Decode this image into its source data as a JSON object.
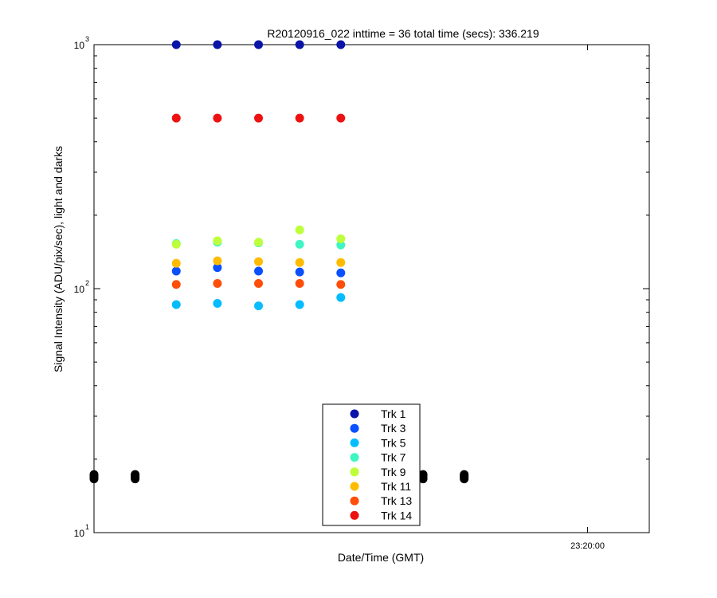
{
  "chart_data": {
    "type": "scatter",
    "title": "R20120916_022 inttime = 36 total time (secs): 336.219",
    "xlabel": "Date/Time (GMT)",
    "ylabel": "Signal Intensity (ADU/pix/sec), light and darks",
    "y_scale": "log",
    "ylim": [
      10,
      1000
    ],
    "y_ticks": [
      {
        "value": 10,
        "base": "10",
        "exp": "1"
      },
      {
        "value": 100,
        "base": "10",
        "exp": "2"
      },
      {
        "value": 1000,
        "base": "10",
        "exp": "3"
      }
    ],
    "x_ticks": [
      "23:20:00"
    ],
    "x_times": [
      "23:17:36",
      "23:17:48",
      "23:18:00",
      "23:18:12",
      "23:18:24",
      "23:18:36",
      "23:18:48",
      "23:19:00",
      "23:19:12"
    ],
    "xlim": [
      "23:17:36",
      "23:20:18"
    ],
    "grid": false,
    "legend_position": "bottom-center",
    "series": [
      {
        "name": "Trk 1",
        "color": "#0a14a8",
        "x": [
          "23:18:00",
          "23:18:12",
          "23:18:24",
          "23:18:36",
          "23:18:48"
        ],
        "values": [
          1000,
          1000,
          1000,
          1000,
          1000
        ]
      },
      {
        "name": "Trk 3",
        "color": "#0a50ff",
        "x": [
          "23:18:00",
          "23:18:12",
          "23:18:24",
          "23:18:36",
          "23:18:48"
        ],
        "values": [
          118,
          122,
          118,
          117,
          116
        ]
      },
      {
        "name": "Trk 5",
        "color": "#05bcff",
        "x": [
          "23:18:00",
          "23:18:12",
          "23:18:24",
          "23:18:36",
          "23:18:48"
        ],
        "values": [
          86,
          87,
          85,
          86,
          92
        ]
      },
      {
        "name": "Trk 7",
        "color": "#3ff5c4",
        "x": [
          "23:18:00",
          "23:18:12",
          "23:18:24",
          "23:18:36",
          "23:18:48"
        ],
        "values": [
          153,
          155,
          154,
          152,
          151
        ]
      },
      {
        "name": "Trk 9",
        "color": "#bcff3a",
        "x": [
          "23:18:00",
          "23:18:12",
          "23:18:24",
          "23:18:36",
          "23:18:48"
        ],
        "values": [
          152,
          157,
          155,
          174,
          160
        ]
      },
      {
        "name": "Trk 11",
        "color": "#ffbb00",
        "x": [
          "23:18:00",
          "23:18:12",
          "23:18:24",
          "23:18:36",
          "23:18:48"
        ],
        "values": [
          127,
          130,
          129,
          128,
          128
        ]
      },
      {
        "name": "Trk 13",
        "color": "#ff4e0a",
        "x": [
          "23:18:00",
          "23:18:12",
          "23:18:24",
          "23:18:36",
          "23:18:48"
        ],
        "values": [
          104,
          105,
          105,
          105,
          104
        ]
      },
      {
        "name": "Trk 14",
        "color": "#ee1111",
        "x": [
          "23:18:00",
          "23:18:12",
          "23:18:24",
          "23:18:36",
          "23:18:48"
        ],
        "values": [
          500,
          500,
          500,
          500,
          500
        ]
      }
    ],
    "dark_points": {
      "color": "#000000",
      "x": [
        "23:17:36",
        "23:17:36",
        "23:17:36",
        "23:17:36",
        "23:17:48",
        "23:17:48",
        "23:17:48",
        "23:17:48",
        "23:19:12",
        "23:19:12",
        "23:19:12",
        "23:19:12",
        "23:19:24",
        "23:19:24",
        "23:19:24",
        "23:19:24"
      ],
      "values": [
        16.6,
        16.9,
        17.1,
        17.3,
        16.6,
        16.9,
        17.1,
        17.3,
        16.6,
        16.9,
        17.1,
        17.3,
        16.6,
        16.9,
        17.1,
        17.3
      ]
    }
  }
}
